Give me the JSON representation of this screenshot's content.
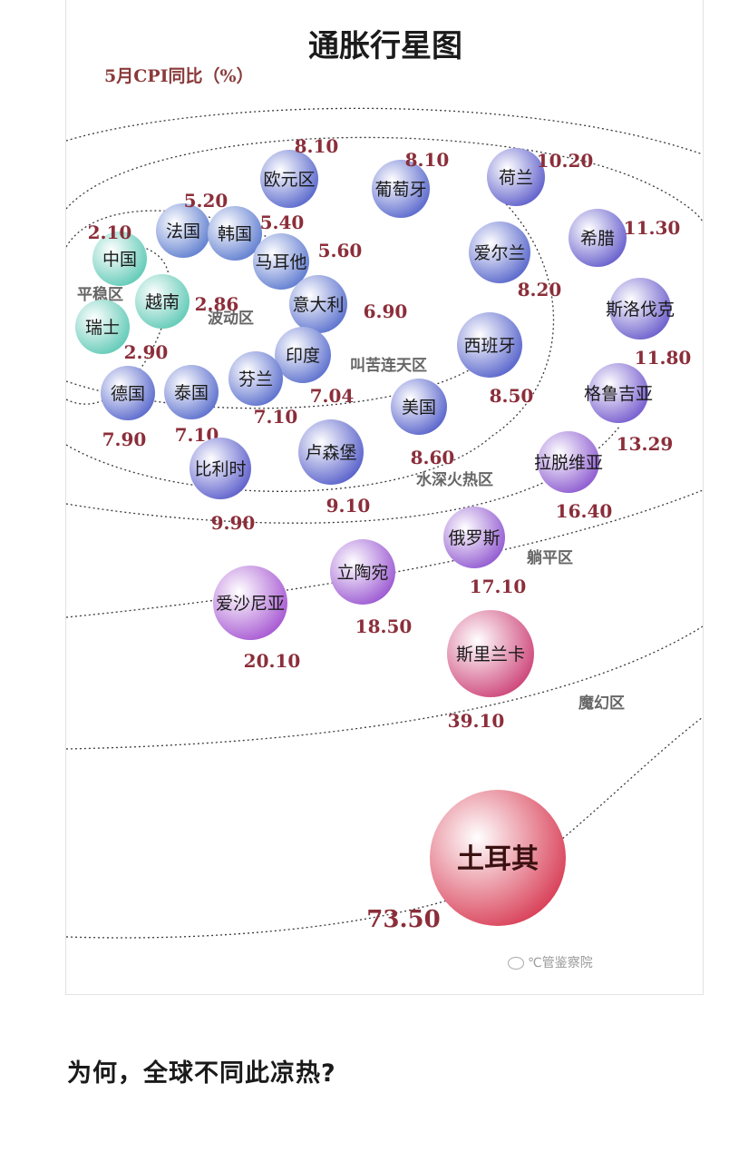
{
  "caption": "为何，全球不同此凉热?",
  "watermark": "℃管鉴察院",
  "chart_data": {
    "type": "scatter",
    "title": "通胀行星图",
    "subtitle": "5月CPI同比（%）",
    "zones": [
      "平稳区",
      "波动区",
      "叫苦连天区",
      "水深火热区",
      "躺平区",
      "魔幻区"
    ],
    "points": [
      {
        "name": "欧元区",
        "value": "8.10"
      },
      {
        "name": "葡萄牙",
        "value": "8.10"
      },
      {
        "name": "荷兰",
        "value": "10.20"
      },
      {
        "name": "希腊",
        "value": "11.30"
      },
      {
        "name": "法国",
        "value": "5.20"
      },
      {
        "name": "韩国",
        "value": "5.40"
      },
      {
        "name": "中国",
        "value": "2.10"
      },
      {
        "name": "马耳他",
        "value": "5.60"
      },
      {
        "name": "爱尔兰",
        "value": "8.20"
      },
      {
        "name": "越南",
        "value": "2.86"
      },
      {
        "name": "意大利",
        "value": "6.90"
      },
      {
        "name": "斯洛伐克",
        "value": "11.80"
      },
      {
        "name": "瑞士",
        "value": "2.90"
      },
      {
        "name": "印度",
        "value": "7.04"
      },
      {
        "name": "西班牙",
        "value": "8.50"
      },
      {
        "name": "德国",
        "value": "7.90"
      },
      {
        "name": "泰国",
        "value": "7.10"
      },
      {
        "name": "芬兰",
        "value": "7.10"
      },
      {
        "name": "美国",
        "value": "8.60"
      },
      {
        "name": "格鲁吉亚",
        "value": "13.29"
      },
      {
        "name": "比利时",
        "value": "9.90"
      },
      {
        "name": "卢森堡",
        "value": "9.10"
      },
      {
        "name": "拉脱维亚",
        "value": "16.40"
      },
      {
        "name": "俄罗斯",
        "value": "17.10"
      },
      {
        "name": "立陶宛",
        "value": "18.50"
      },
      {
        "name": "爱沙尼亚",
        "value": "20.10"
      },
      {
        "name": "斯里兰卡",
        "value": "39.10"
      },
      {
        "name": "土耳其",
        "value": "73.50"
      }
    ]
  }
}
